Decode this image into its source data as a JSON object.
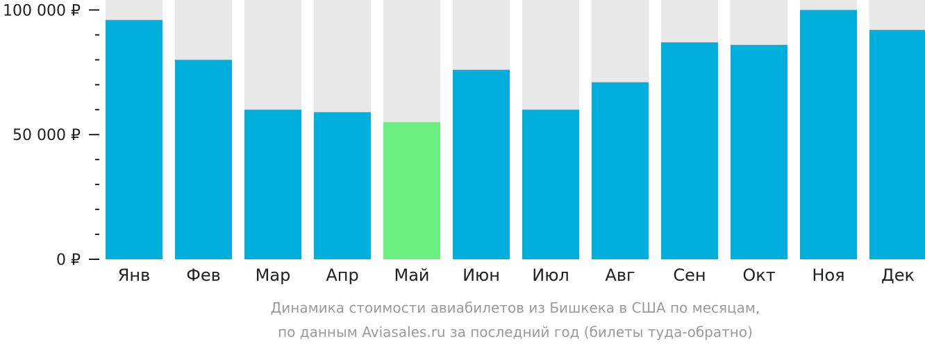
{
  "chart_data": {
    "type": "bar",
    "categories": [
      "Янв",
      "Фев",
      "Мар",
      "Апр",
      "Май",
      "Июн",
      "Июл",
      "Авг",
      "Сен",
      "Окт",
      "Ноя",
      "Дек"
    ],
    "values": [
      96000,
      80000,
      60000,
      59000,
      55000,
      76000,
      60000,
      71000,
      87000,
      86000,
      100000,
      92000
    ],
    "highlight_index": 4,
    "ylim": [
      0,
      104000
    ],
    "yticks": [
      {
        "value": 0,
        "label": "0 ₽"
      },
      {
        "value": 50000,
        "label": "50 000 ₽"
      },
      {
        "value": 100000,
        "label": "100 000 ₽"
      }
    ],
    "minor_step": 10000,
    "colors": {
      "bar": "#00afdc",
      "highlight": "#6bf07f",
      "background_bar": "#e8e8e8",
      "tick_text": "#1f1f1f",
      "caption_text": "#9a9a9a"
    },
    "caption": [
      "Динамика стоимости авиабилетов из Бишкека в США по месяцам,",
      "по данным Aviasales.ru за последний год (билеты туда-обратно)"
    ],
    "xlabel": "",
    "ylabel": ""
  }
}
